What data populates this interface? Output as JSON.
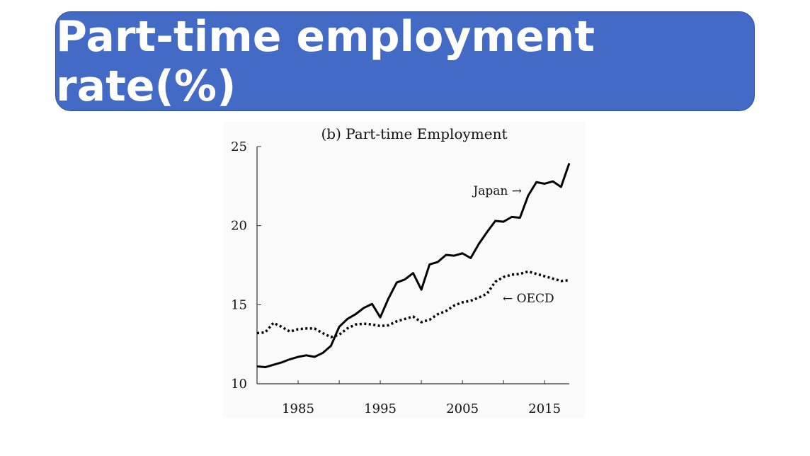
{
  "slide": {
    "title": "Part-time employment rate(%)"
  },
  "chart_data": {
    "type": "line",
    "title": "(b) Part-time Employment",
    "xlabel": "",
    "ylabel": "",
    "xlim": [
      1980,
      2018
    ],
    "ylim": [
      10,
      25
    ],
    "xticks": [
      1985,
      1990,
      1995,
      2000,
      2005,
      2010,
      2015
    ],
    "xtick_labels": [
      "1985",
      "1995",
      "2005",
      "2015"
    ],
    "yticks": [
      10,
      15,
      20,
      25
    ],
    "ytick_labels": [
      "10",
      "15",
      "20",
      "25"
    ],
    "grid": false,
    "x": [
      1980,
      1981,
      1982,
      1983,
      1984,
      1985,
      1986,
      1987,
      1988,
      1989,
      1990,
      1991,
      1992,
      1993,
      1994,
      1995,
      1996,
      1997,
      1998,
      1999,
      2000,
      2001,
      2002,
      2003,
      2004,
      2005,
      2006,
      2007,
      2008,
      2009,
      2010,
      2011,
      2012,
      2013,
      2014,
      2015,
      2016,
      2017,
      2018
    ],
    "series": [
      {
        "name": "Japan",
        "label": "Japan →",
        "style": "solid",
        "values": [
          11.1,
          11.05,
          11.2,
          11.35,
          11.55,
          11.7,
          11.8,
          11.7,
          11.95,
          12.4,
          13.6,
          14.1,
          14.4,
          14.8,
          15.05,
          14.2,
          15.4,
          16.4,
          16.6,
          17.0,
          15.95,
          17.55,
          17.7,
          18.15,
          18.1,
          18.25,
          17.95,
          18.85,
          19.6,
          20.3,
          20.25,
          20.55,
          20.5,
          21.9,
          22.75,
          22.65,
          22.8,
          22.45,
          23.95
        ]
      },
      {
        "name": "OECD",
        "label": "← OECD",
        "style": "dotted",
        "values": [
          13.2,
          13.25,
          13.85,
          13.6,
          13.3,
          13.45,
          13.5,
          13.5,
          13.2,
          12.95,
          13.1,
          13.5,
          13.75,
          13.8,
          13.75,
          13.65,
          13.7,
          13.95,
          14.1,
          14.25,
          13.9,
          14.05,
          14.4,
          14.6,
          14.95,
          15.15,
          15.25,
          15.45,
          15.7,
          16.45,
          16.75,
          16.9,
          16.95,
          17.1,
          16.95,
          16.8,
          16.65,
          16.5,
          16.55
        ]
      }
    ]
  }
}
